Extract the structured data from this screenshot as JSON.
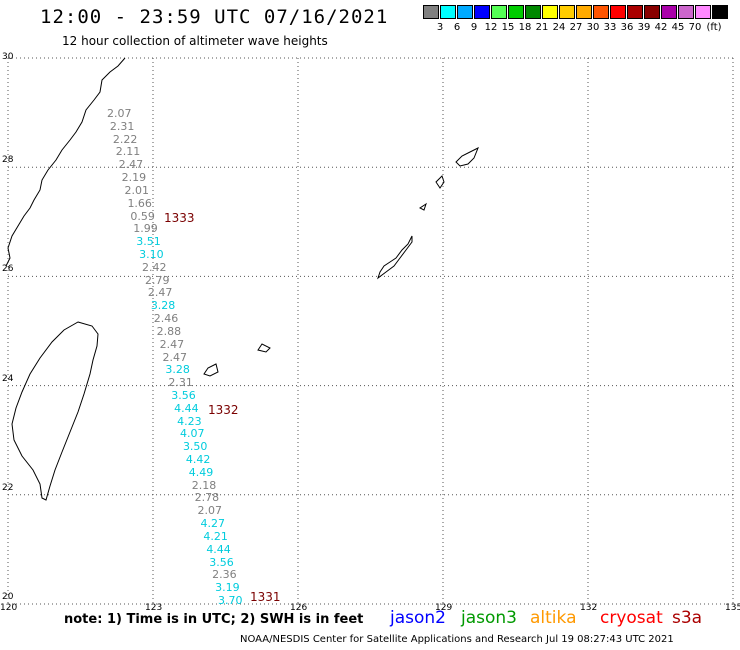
{
  "header": {
    "title": "12:00 - 23:59 UTC 07/16/2021",
    "subtitle": "12 hour collection of altimeter wave heights"
  },
  "colorbar": {
    "unit": "(ft)",
    "colors": [
      "#808080",
      "#00ffff",
      "#00aaff",
      "#0000ff",
      "#55ff55",
      "#00cc00",
      "#008800",
      "#ffff00",
      "#ffcc00",
      "#ffaa00",
      "#ff5500",
      "#ff0000",
      "#aa0000",
      "#880000",
      "#aa00aa",
      "#cc66cc",
      "#ff88ff",
      "#000000"
    ],
    "labels": [
      "3",
      "6",
      "9",
      "12",
      "15",
      "18",
      "21",
      "24",
      "27",
      "30",
      "33",
      "36",
      "39",
      "42",
      "45",
      "70"
    ]
  },
  "map": {
    "lat_labels": [
      "30",
      "28",
      "26",
      "24",
      "22",
      "20"
    ],
    "lon_labels": [
      "120",
      "123",
      "126",
      "129",
      "132",
      "135"
    ],
    "grid_color": "#555555"
  },
  "wave_heights": [
    {
      "v": "2.07",
      "c": "#808080"
    },
    {
      "v": "2.31",
      "c": "#808080"
    },
    {
      "v": "2.22",
      "c": "#808080"
    },
    {
      "v": "2.11",
      "c": "#808080"
    },
    {
      "v": "2.47",
      "c": "#808080"
    },
    {
      "v": "2.19",
      "c": "#808080"
    },
    {
      "v": "2.01",
      "c": "#808080"
    },
    {
      "v": "1.66",
      "c": "#808080"
    },
    {
      "v": "0.59",
      "c": "#808080"
    },
    {
      "v": "1.99",
      "c": "#808080"
    },
    {
      "v": "3.51",
      "c": "#00ccdd"
    },
    {
      "v": "3.10",
      "c": "#00ccdd"
    },
    {
      "v": "2.42",
      "c": "#808080"
    },
    {
      "v": "2.79",
      "c": "#808080"
    },
    {
      "v": "2.47",
      "c": "#808080"
    },
    {
      "v": "3.28",
      "c": "#00ccdd"
    },
    {
      "v": "2.46",
      "c": "#808080"
    },
    {
      "v": "2.88",
      "c": "#808080"
    },
    {
      "v": "2.47",
      "c": "#808080"
    },
    {
      "v": "2.47",
      "c": "#808080"
    },
    {
      "v": "3.28",
      "c": "#00ccdd"
    },
    {
      "v": "2.31",
      "c": "#808080"
    },
    {
      "v": "3.56",
      "c": "#00ccdd"
    },
    {
      "v": "4.44",
      "c": "#00ccdd"
    },
    {
      "v": "4.23",
      "c": "#00ccdd"
    },
    {
      "v": "4.07",
      "c": "#00ccdd"
    },
    {
      "v": "3.50",
      "c": "#00ccdd"
    },
    {
      "v": "4.42",
      "c": "#00ccdd"
    },
    {
      "v": "4.49",
      "c": "#00ccdd"
    },
    {
      "v": "2.18",
      "c": "#808080"
    },
    {
      "v": "2.78",
      "c": "#808080"
    },
    {
      "v": "2.07",
      "c": "#808080"
    },
    {
      "v": "4.27",
      "c": "#00ccdd"
    },
    {
      "v": "4.21",
      "c": "#00ccdd"
    },
    {
      "v": "4.44",
      "c": "#00ccdd"
    },
    {
      "v": "3.56",
      "c": "#00ccdd"
    },
    {
      "v": "2.36",
      "c": "#808080"
    },
    {
      "v": "3.19",
      "c": "#00ccdd"
    },
    {
      "v": "3.70",
      "c": "#00ccdd"
    }
  ],
  "pass_labels": [
    "1333",
    "1332",
    "1331"
  ],
  "footer": {
    "note": "note:  1) Time is in UTC;  2) SWH is in feet",
    "credits": "NOAA/NESDIS Center for Satellite Applications and Research    Jul 19 08:27:43 UTC 2021",
    "satellites": [
      {
        "name": "jason2",
        "color": "#0000ff"
      },
      {
        "name": "jason3",
        "color": "#009900"
      },
      {
        "name": "altika",
        "color": "#ff9900"
      },
      {
        "name": "cryosat",
        "color": "#ff0000"
      },
      {
        "name": "s3a",
        "color": "#aa0000"
      }
    ]
  }
}
